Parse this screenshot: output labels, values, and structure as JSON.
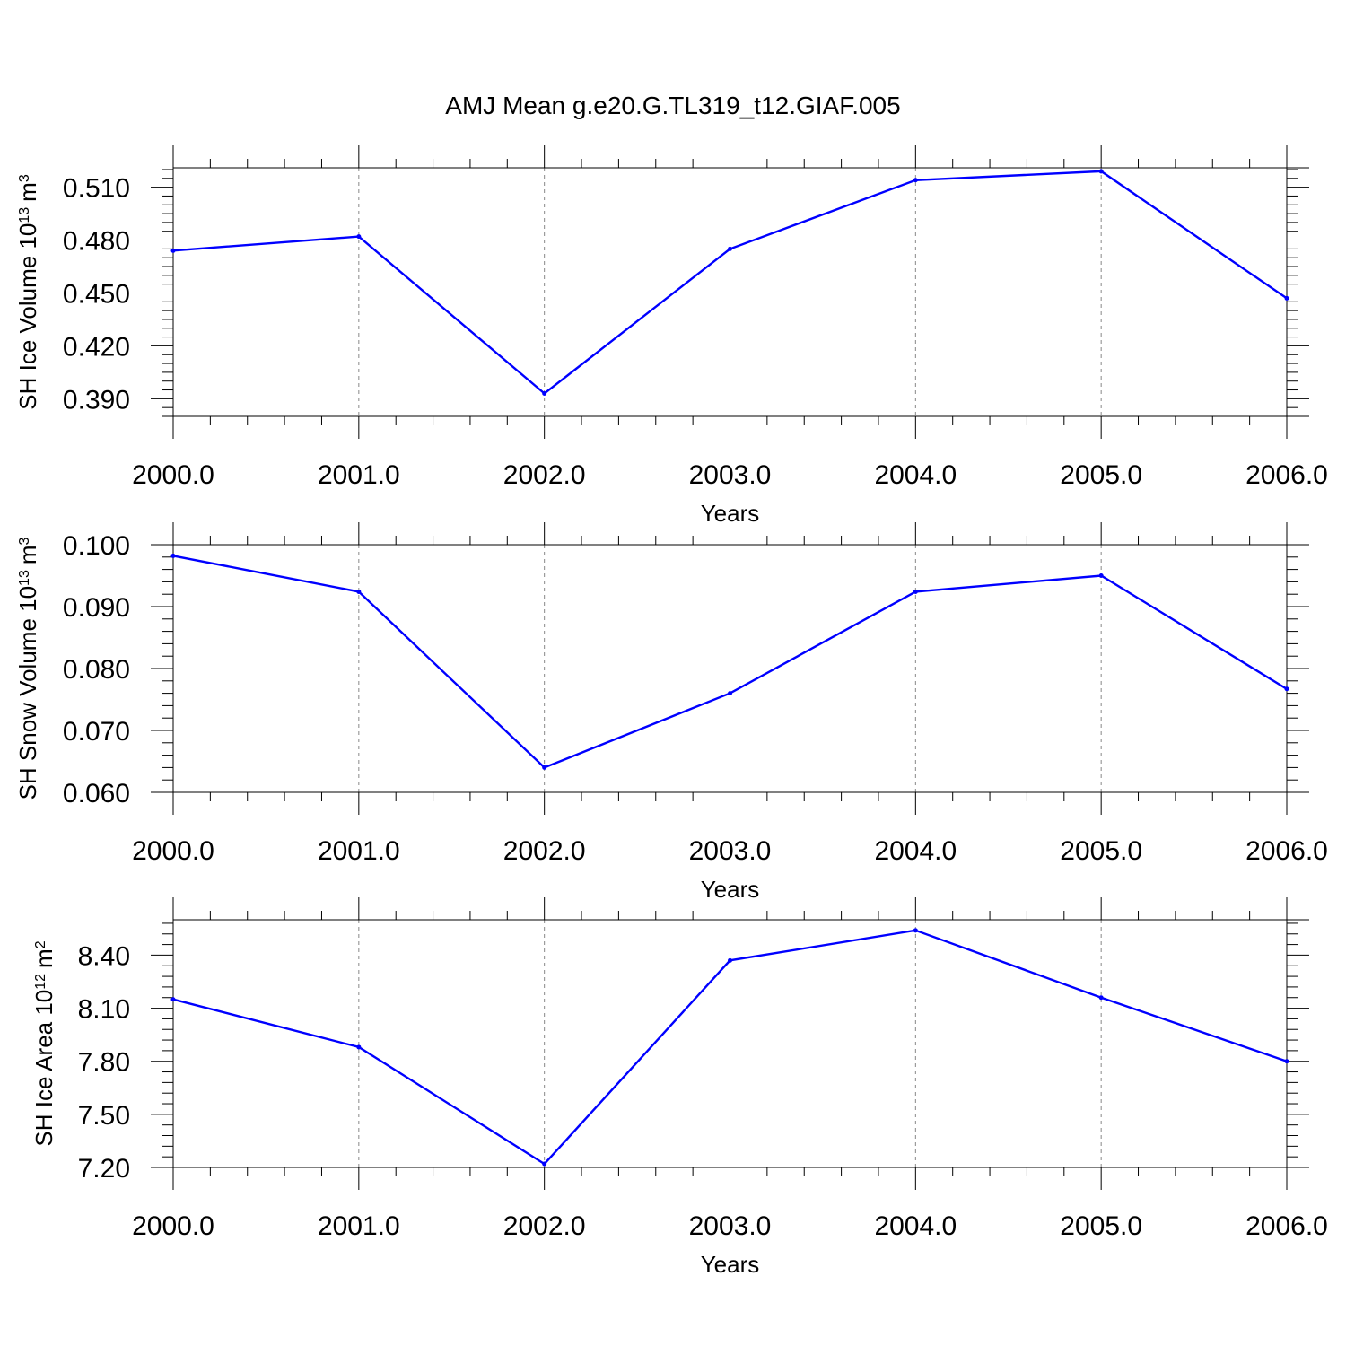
{
  "title": "AMJ Mean g.e20.G.TL319_t12.GIAF.005",
  "colors": {
    "line": "#0000ff",
    "axis": "#000000",
    "grid": "#888888"
  },
  "chart_data": [
    {
      "type": "line",
      "ylabel_main": "SH Ice Volume 10",
      "ylabel_exp": "13",
      "ylabel_unit": "m",
      "ylabel_unit_exp": "3",
      "xlabel": "Years",
      "x": [
        2000,
        2001,
        2002,
        2003,
        2004,
        2005,
        2006
      ],
      "x_tick_labels": [
        "2000.0",
        "2001.0",
        "2002.0",
        "2003.0",
        "2004.0",
        "2005.0",
        "2006.0"
      ],
      "y": [
        0.474,
        0.482,
        0.393,
        0.475,
        0.514,
        0.519,
        0.447
      ],
      "xlim": [
        2000,
        2006
      ],
      "ylim": [
        0.38,
        0.521
      ],
      "y_ticks": [
        0.39,
        0.42,
        0.45,
        0.48,
        0.51
      ],
      "y_tick_labels": [
        "0.390",
        "0.420",
        "0.450",
        "0.480",
        "0.510"
      ],
      "y_minor_step": 0.005,
      "x_minor_step": 0.2,
      "grid": "vertical dashed"
    },
    {
      "type": "line",
      "ylabel_main": "SH Snow Volume 10",
      "ylabel_exp": "13",
      "ylabel_unit": "m",
      "ylabel_unit_exp": "3",
      "xlabel": "Years",
      "x": [
        2000,
        2001,
        2002,
        2003,
        2004,
        2005,
        2006
      ],
      "x_tick_labels": [
        "2000.0",
        "2001.0",
        "2002.0",
        "2003.0",
        "2004.0",
        "2005.0",
        "2006.0"
      ],
      "y": [
        0.0982,
        0.0924,
        0.064,
        0.076,
        0.0924,
        0.095,
        0.0767
      ],
      "xlim": [
        2000,
        2006
      ],
      "ylim": [
        0.06,
        0.1
      ],
      "y_ticks": [
        0.06,
        0.07,
        0.08,
        0.09,
        0.1
      ],
      "y_tick_labels": [
        "0.060",
        "0.070",
        "0.080",
        "0.090",
        "0.100"
      ],
      "y_minor_step": 0.002,
      "x_minor_step": 0.2,
      "grid": "vertical dashed"
    },
    {
      "type": "line",
      "ylabel_main": "SH Ice Area 10",
      "ylabel_exp": "12",
      "ylabel_unit": "m",
      "ylabel_unit_exp": "2",
      "xlabel": "Years",
      "x": [
        2000,
        2001,
        2002,
        2003,
        2004,
        2005,
        2006
      ],
      "x_tick_labels": [
        "2000.0",
        "2001.0",
        "2002.0",
        "2003.0",
        "2004.0",
        "2005.0",
        "2006.0"
      ],
      "y": [
        8.15,
        7.88,
        7.22,
        8.37,
        8.54,
        8.16,
        7.8
      ],
      "xlim": [
        2000,
        2006
      ],
      "ylim": [
        7.2,
        8.6
      ],
      "y_ticks": [
        7.2,
        7.5,
        7.8,
        8.1,
        8.4
      ],
      "y_tick_labels": [
        "7.20",
        "7.50",
        "7.80",
        "8.10",
        "8.40"
      ],
      "y_minor_step": 0.06,
      "x_minor_step": 0.2,
      "grid": "vertical dashed"
    }
  ]
}
